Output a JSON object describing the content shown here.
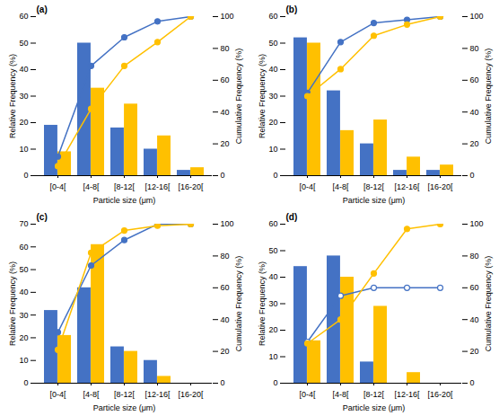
{
  "chart_data": [
    {
      "type": "bar",
      "title": "(a)",
      "categories": [
        "[0-4[",
        "[4-8[",
        "[8-12[",
        "[12-16[",
        "[16-20["
      ],
      "xlabel": "Particle size (μm)",
      "ylabel": "Relative Frequency (%)",
      "y2label": "Cumulative Frequency (%)",
      "ylim": [
        0,
        60
      ],
      "yticks": [
        0,
        10,
        20,
        30,
        40,
        50,
        60
      ],
      "y2lim": [
        0,
        100
      ],
      "y2ticks": [
        0,
        20,
        40,
        60,
        80,
        100
      ],
      "grid": false,
      "series": [
        {
          "type": "bar",
          "color": "#4472C4",
          "values": [
            19,
            50,
            18,
            10,
            2
          ]
        },
        {
          "type": "bar",
          "color": "#FFC000",
          "values": [
            9,
            33,
            27,
            15,
            3
          ]
        },
        {
          "type": "line",
          "axis": "y2",
          "color": "#4472C4",
          "marker": "circle",
          "values": [
            12,
            69,
            87,
            97,
            100
          ]
        },
        {
          "type": "line",
          "axis": "y2",
          "color": "#FFC000",
          "marker": "circle",
          "values": [
            6,
            42,
            69,
            84,
            100
          ]
        }
      ]
    },
    {
      "type": "bar",
      "title": "(b)",
      "categories": [
        "[0-4[",
        "[4-8[",
        "[8-12[",
        "[12-16[",
        "[16-20["
      ],
      "xlabel": "Particle size (μm)",
      "ylabel": "Relative Frequency (%)",
      "y2label": "Cumulative Frequency (%)",
      "ylim": [
        0,
        60
      ],
      "yticks": [
        0,
        10,
        20,
        30,
        40,
        50,
        60
      ],
      "y2lim": [
        0,
        100
      ],
      "y2ticks": [
        0,
        20,
        40,
        60,
        80,
        100
      ],
      "grid": false,
      "series": [
        {
          "type": "bar",
          "color": "#4472C4",
          "values": [
            52,
            32,
            12,
            2,
            2
          ]
        },
        {
          "type": "bar",
          "color": "#FFC000",
          "values": [
            50,
            17,
            21,
            7,
            4
          ]
        },
        {
          "type": "line",
          "axis": "y2",
          "color": "#4472C4",
          "marker": "circle",
          "values": [
            52,
            84,
            96,
            98,
            100
          ]
        },
        {
          "type": "line",
          "axis": "y2",
          "color": "#FFC000",
          "marker": "circle",
          "values": [
            50,
            67,
            88,
            95,
            100
          ]
        }
      ]
    },
    {
      "type": "bar",
      "title": "(c)",
      "categories": [
        "[0-4[",
        "[4-8[",
        "[8-12[",
        "[12-16[",
        "[16-20["
      ],
      "xlabel": "Particle size (μm)",
      "ylabel": "Relative Frequency (%)",
      "y2label": "Cumulative Frequency (%)",
      "ylim": [
        0,
        70
      ],
      "yticks": [
        0,
        10,
        20,
        30,
        40,
        50,
        60,
        70
      ],
      "y2lim": [
        0,
        100
      ],
      "y2ticks": [
        0,
        20,
        40,
        60,
        80,
        100
      ],
      "grid": false,
      "series": [
        {
          "type": "bar",
          "color": "#4472C4",
          "values": [
            32,
            42,
            16,
            10,
            0
          ]
        },
        {
          "type": "bar",
          "color": "#FFC000",
          "values": [
            21,
            61,
            14,
            3,
            0
          ]
        },
        {
          "type": "line",
          "axis": "y2",
          "color": "#4472C4",
          "marker": "circle",
          "values": [
            32,
            74,
            90,
            100,
            100
          ]
        },
        {
          "type": "line",
          "axis": "y2",
          "color": "#FFC000",
          "marker": "circle",
          "values": [
            21,
            82,
            96,
            99,
            100
          ]
        }
      ]
    },
    {
      "type": "bar",
      "title": "(d)",
      "categories": [
        "[0-4[",
        "[4-8[",
        "[8-12[",
        "[12-16[",
        "[16-20["
      ],
      "xlabel": "Particle size (μm)",
      "ylabel": "Relative Frequency (%)",
      "y2label": "Cumulative Frequency (%)",
      "ylim": [
        0,
        60
      ],
      "yticks": [
        0,
        10,
        20,
        30,
        40,
        50,
        60
      ],
      "y2lim": [
        0,
        100
      ],
      "y2ticks": [
        0,
        20,
        40,
        60,
        80,
        100
      ],
      "grid": false,
      "series": [
        {
          "type": "bar",
          "color": "#4472C4",
          "values": [
            44,
            48,
            8,
            0,
            0
          ]
        },
        {
          "type": "bar",
          "color": "#FFC000",
          "values": [
            16,
            40,
            29,
            4,
            0
          ]
        },
        {
          "type": "line",
          "axis": "y2",
          "color": "#4472C4",
          "marker": "circle-open",
          "values": [
            26,
            55,
            60,
            60,
            60
          ]
        },
        {
          "type": "line",
          "axis": "y2",
          "color": "#FFC000",
          "marker": "circle",
          "values": [
            25,
            40,
            69,
            97,
            100
          ]
        }
      ]
    }
  ]
}
